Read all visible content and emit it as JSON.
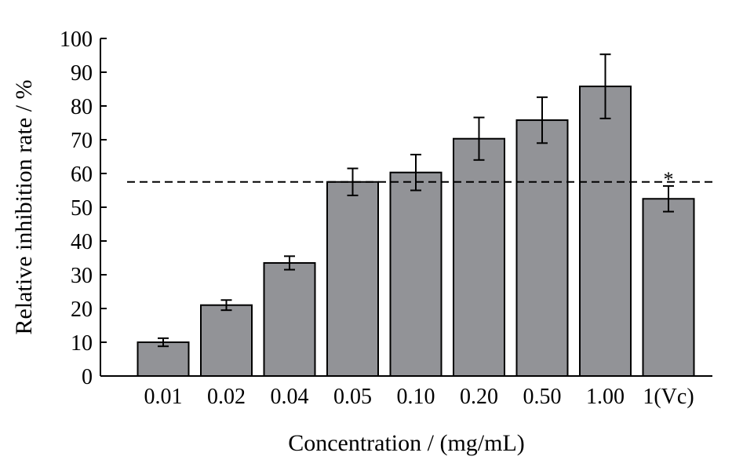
{
  "chart_data": {
    "type": "bar",
    "title": "",
    "xlabel": "Concentration / (mg/mL)",
    "ylabel": "Relative inhibition rate / %",
    "categories": [
      "0.01",
      "0.02",
      "0.04",
      "0.05",
      "0.10",
      "0.20",
      "0.50",
      "1.00",
      "1(Vc)"
    ],
    "values": [
      10.0,
      21.0,
      33.5,
      57.5,
      60.3,
      70.3,
      75.8,
      85.8,
      52.5
    ],
    "errors": [
      1.2,
      1.5,
      2.0,
      4.0,
      5.3,
      6.3,
      6.8,
      9.5,
      3.8
    ],
    "ylim": [
      0,
      100
    ],
    "yticks": [
      0,
      10,
      20,
      30,
      40,
      50,
      60,
      70,
      80,
      90,
      100
    ],
    "reference_line": 57.5,
    "annotations": [
      {
        "category": "1(Vc)",
        "text": "*"
      }
    ],
    "bar_color": "#929397",
    "grid": false,
    "legend": "none"
  }
}
